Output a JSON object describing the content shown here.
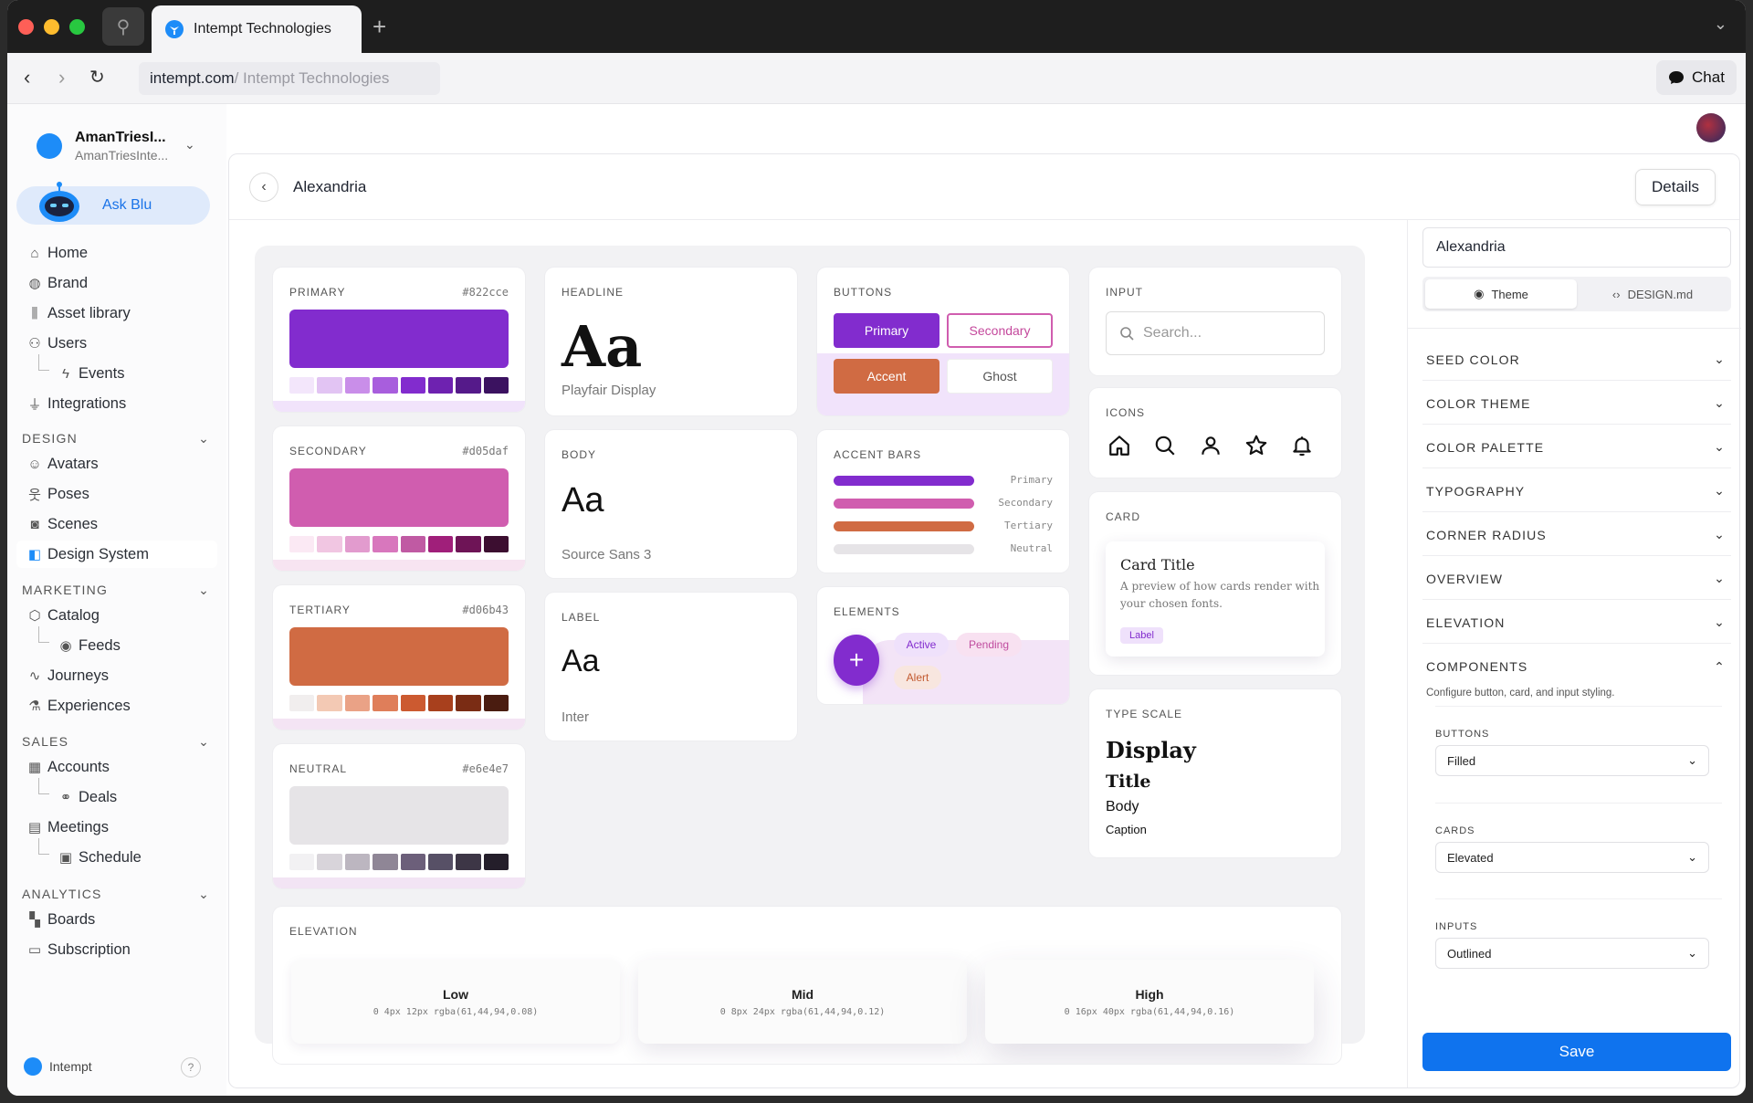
{
  "browser": {
    "tab_title": "Intempt Technologies",
    "url_domain": "intempt.com",
    "url_rest": " / Intempt Technologies",
    "chat_label": "Chat"
  },
  "sidebar": {
    "org_name": "AmanTriesI...",
    "org_sub": "AmanTriesInte...",
    "ask_blu": "Ask Blu",
    "items": [
      {
        "label": "Home",
        "icon": "home-icon"
      },
      {
        "label": "Brand",
        "icon": "palette-icon"
      },
      {
        "label": "Asset library",
        "icon": "library-icon"
      },
      {
        "label": "Users",
        "icon": "users-icon"
      },
      {
        "label": "Events",
        "icon": "bolt-icon"
      },
      {
        "label": "Integrations",
        "icon": "plug-icon"
      }
    ],
    "design_header": "DESIGN",
    "design_items": [
      {
        "label": "Avatars",
        "icon": "avatar-icon"
      },
      {
        "label": "Poses",
        "icon": "pose-icon"
      },
      {
        "label": "Scenes",
        "icon": "camera-icon"
      },
      {
        "label": "Design System",
        "icon": "design-system-icon"
      }
    ],
    "marketing_header": "MARKETING",
    "marketing_items": [
      {
        "label": "Catalog",
        "icon": "box-icon"
      },
      {
        "label": "Feeds",
        "icon": "broadcast-icon"
      },
      {
        "label": "Journeys",
        "icon": "route-icon"
      },
      {
        "label": "Experiences",
        "icon": "flask-icon"
      }
    ],
    "sales_header": "SALES",
    "sales_items": [
      {
        "label": "Accounts",
        "icon": "building-icon"
      },
      {
        "label": "Deals",
        "icon": "handshake-icon"
      },
      {
        "label": "Meetings",
        "icon": "calendar-icon"
      },
      {
        "label": "Schedule",
        "icon": "calendar-clock-icon"
      }
    ],
    "analytics_header": "ANALYTICS",
    "analytics_items": [
      {
        "label": "Boards",
        "icon": "grid-icon"
      },
      {
        "label": "Subscription",
        "icon": "card-icon"
      }
    ],
    "footer": "Intempt",
    "help": "?"
  },
  "main": {
    "title": "Alexandria",
    "details_button": "Details"
  },
  "colors": {
    "primary": {
      "label": "PRIMARY",
      "hex": "#822cce",
      "shades": [
        "#f3e6fb",
        "#e2c4f3",
        "#c98ee9",
        "#a85edd",
        "#822cce",
        "#6e22b0",
        "#551a8a",
        "#3b1260"
      ]
    },
    "secondary": {
      "label": "SECONDARY",
      "hex": "#d05daf",
      "shades": [
        "#fbe9f4",
        "#f1c6e2",
        "#e29bce",
        "#d877bd",
        "#c05aa3",
        "#a01f7a",
        "#6e1456",
        "#3c0e30"
      ]
    },
    "tertiary": {
      "label": "TERTIARY",
      "hex": "#d06b43",
      "shades": [
        "#f1eeee",
        "#f3c9b4",
        "#eaa286",
        "#df7e5a",
        "#cc5a30",
        "#a8401d",
        "#7a2c14",
        "#4a1c10"
      ]
    },
    "neutral": {
      "label": "NEUTRAL",
      "hex": "#e6e4e7",
      "shades": [
        "#f2f1f3",
        "#d8d4da",
        "#bcb6c0",
        "#8f8696",
        "#6c5f7a",
        "#575066",
        "#3d3646",
        "#241e2a"
      ]
    }
  },
  "typography": {
    "headline": {
      "label": "HEADLINE",
      "sample": "Aa",
      "font": "Playfair Display"
    },
    "body": {
      "label": "BODY",
      "sample": "Aa",
      "font": "Source Sans 3"
    },
    "label": {
      "label": "LABEL",
      "sample": "Aa",
      "font": "Inter"
    }
  },
  "buttons_card": {
    "label": "BUTTONS",
    "primary": "Primary",
    "secondary": "Secondary",
    "accent": "Accent",
    "ghost": "Ghost"
  },
  "accent_bars": {
    "label": "ACCENT BARS",
    "items": [
      {
        "name": "Primary",
        "color": "#822cce"
      },
      {
        "name": "Secondary",
        "color": "#d05daf"
      },
      {
        "name": "Tertiary",
        "color": "#d06b43"
      },
      {
        "name": "Neutral",
        "color": "#e6e4e7"
      }
    ]
  },
  "elements_card": {
    "label": "ELEMENTS",
    "fab": "+",
    "chip_active": "Active",
    "chip_pending": "Pending",
    "chip_alert": "Alert"
  },
  "input_card": {
    "label": "INPUT",
    "placeholder": "Search..."
  },
  "icons_card": {
    "label": "ICONS",
    "icons": [
      "home-icon",
      "search-icon",
      "user-icon",
      "star-icon",
      "bell-icon"
    ]
  },
  "card_card": {
    "label": "CARD",
    "title": "Card Title",
    "desc": "A preview of how cards render with your chosen fonts.",
    "chip": "Label"
  },
  "type_scale": {
    "label": "TYPE SCALE",
    "display": "Display",
    "title": "Title",
    "body": "Body",
    "caption": "Caption"
  },
  "elevation": {
    "label": "ELEVATION",
    "low": {
      "name": "Low",
      "shadow": "0 4px 12px rgba(61,44,94,0.08)"
    },
    "mid": {
      "name": "Mid",
      "shadow": "0 8px 24px rgba(61,44,94,0.12)"
    },
    "high": {
      "name": "High",
      "shadow": "0 16px 40px rgba(61,44,94,0.16)"
    }
  },
  "right_panel": {
    "name_value": "Alexandria",
    "tab_theme": "Theme",
    "tab_design": "DESIGN.md",
    "sections": [
      "SEED COLOR",
      "COLOR THEME",
      "COLOR PALETTE",
      "TYPOGRAPHY",
      "CORNER RADIUS",
      "OVERVIEW",
      "ELEVATION"
    ],
    "components_header": "COMPONENTS",
    "components_desc": "Configure button, card, and input styling.",
    "buttons_label": "BUTTONS",
    "buttons_value": "Filled",
    "cards_label": "CARDS",
    "cards_value": "Elevated",
    "inputs_label": "INPUTS",
    "inputs_value": "Outlined",
    "save": "Save"
  }
}
